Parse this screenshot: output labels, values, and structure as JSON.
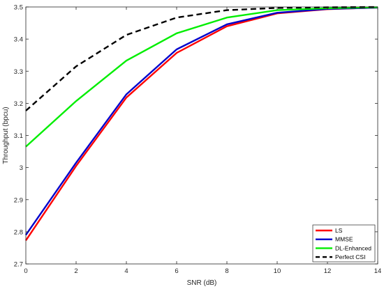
{
  "chart_data": {
    "type": "line",
    "title": "",
    "xlabel": "SNR (dB)",
    "ylabel": "Throughput (bpcu)",
    "x": [
      0,
      2,
      4,
      6,
      8,
      10,
      12,
      14
    ],
    "xlim": [
      0,
      14
    ],
    "ylim": [
      2.7,
      3.5
    ],
    "xticks": [
      0,
      2,
      4,
      6,
      8,
      10,
      12,
      14
    ],
    "yticks": [
      2.7,
      2.8,
      2.9,
      3.0,
      3.1,
      3.2,
      3.3,
      3.4,
      3.5
    ],
    "xtick_labels": [
      "0",
      "2",
      "4",
      "6",
      "8",
      "10",
      "12",
      "14"
    ],
    "ytick_labels": [
      "2.7",
      "2.8",
      "2.9",
      "3",
      "3.1",
      "3.2",
      "3.3",
      "3.4",
      "3.5"
    ],
    "grid": false,
    "legend_position": "bottom-right",
    "series": [
      {
        "name": "LS",
        "color": "#ff0000",
        "dash": "solid",
        "values": [
          2.773,
          3.005,
          3.218,
          3.357,
          3.44,
          3.48,
          3.493,
          3.498
        ]
      },
      {
        "name": "MMSE",
        "color": "#0000cc",
        "dash": "solid",
        "values": [
          2.79,
          3.015,
          3.228,
          3.368,
          3.446,
          3.482,
          3.494,
          3.498
        ]
      },
      {
        "name": "DL-Enhanced",
        "color": "#00ee00",
        "dash": "solid",
        "values": [
          3.065,
          3.207,
          3.333,
          3.418,
          3.467,
          3.49,
          3.496,
          3.499
        ]
      },
      {
        "name": "Perfect CSI",
        "color": "#000000",
        "dash": "dashed",
        "values": [
          3.177,
          3.315,
          3.413,
          3.467,
          3.49,
          3.497,
          3.499,
          3.5
        ]
      }
    ]
  }
}
